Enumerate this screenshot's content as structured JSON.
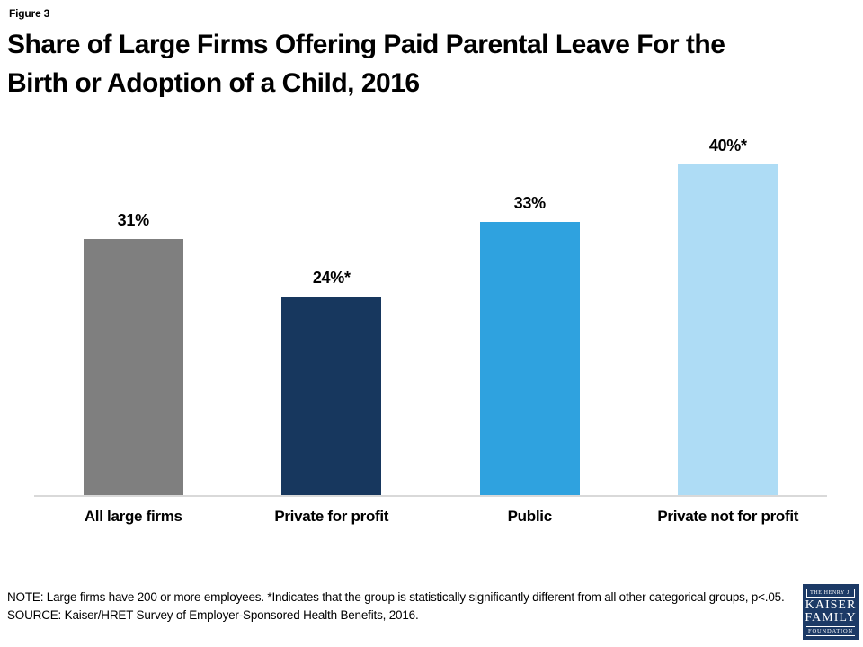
{
  "figure_label": "Figure 3",
  "title": {
    "line1": "Share of Large Firms Offering Paid Parental Leave For the",
    "line2": "Birth or Adoption of a Child, 2016"
  },
  "chart_data": {
    "type": "bar",
    "title": "Share of Large Firms Offering Paid Parental Leave For the Birth or Adoption of a Child, 2016",
    "categories": [
      "All large firms",
      "Private for profit",
      "Public",
      "Private not for profit"
    ],
    "values": [
      31,
      24,
      33,
      40
    ],
    "value_labels": [
      "31%",
      "24%*",
      "33%",
      "40%*"
    ],
    "colors": [
      "#7F7F7F",
      "#17375E",
      "#2FA2DF",
      "#AEDCF5"
    ],
    "xlabel": "",
    "ylabel": "",
    "ylim": [
      0,
      43
    ],
    "grid": false,
    "legend": "none",
    "axis_line_color": "#D9D9D9"
  },
  "notes": {
    "note_line": "NOTE: Large firms have 200 or more  employees. *Indicates that the group is statistically significantly different from all other categorical groups, p<.05.",
    "source_line": "SOURCE: Kaiser/HRET Survey of Employer-Sponsored  Health Benefits, 2016."
  },
  "logo": {
    "line_top": "THE HENRY J.",
    "line_main1": "KAISER",
    "line_main2": "FAMILY",
    "line_bottom": "FOUNDATION",
    "background": "#1C3A66"
  }
}
